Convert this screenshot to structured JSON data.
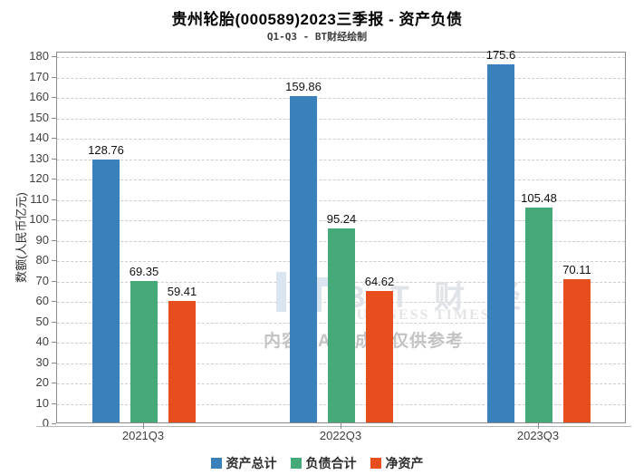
{
  "title": "贵州轮胎(000589)2023三季报 - 资产负债",
  "subtitle": "Q1-Q3 - BT财经绘制",
  "watermark": {
    "brand_cn": "B T 财 经",
    "brand_en": "BUSINESS TIMES",
    "disclaimer": "内容由AI生成，仅供参考"
  },
  "colors": {
    "series_blue": "#3A81BC",
    "series_green": "#46A97A",
    "series_orange": "#E84E1D",
    "grid": "#cdcdcd",
    "plot_border": "#8a8a8a",
    "tick_text": "#3f3f3f"
  },
  "chart_data": {
    "type": "bar",
    "title": "贵州轮胎(000589)2023三季报 - 资产负债",
    "subtitle": "Q1-Q3 - BT财经绘制",
    "xlabel": "",
    "ylabel": "数额(人民币亿元)",
    "categories": [
      "2021Q3",
      "2022Q3",
      "2023Q3"
    ],
    "series": [
      {
        "name": "资产总计",
        "color": "#3A81BC",
        "values": [
          128.76,
          159.86,
          175.6
        ]
      },
      {
        "name": "负债合计",
        "color": "#46A97A",
        "values": [
          69.35,
          95.24,
          105.48
        ]
      },
      {
        "name": "净资产",
        "color": "#E84E1D",
        "values": [
          59.41,
          64.62,
          70.11
        ]
      }
    ],
    "ylim": [
      0,
      180
    ],
    "ytick_step": 10,
    "grid": true,
    "grid_style": "dashed",
    "legend_position": "bottom",
    "bar_value_labels": true
  }
}
